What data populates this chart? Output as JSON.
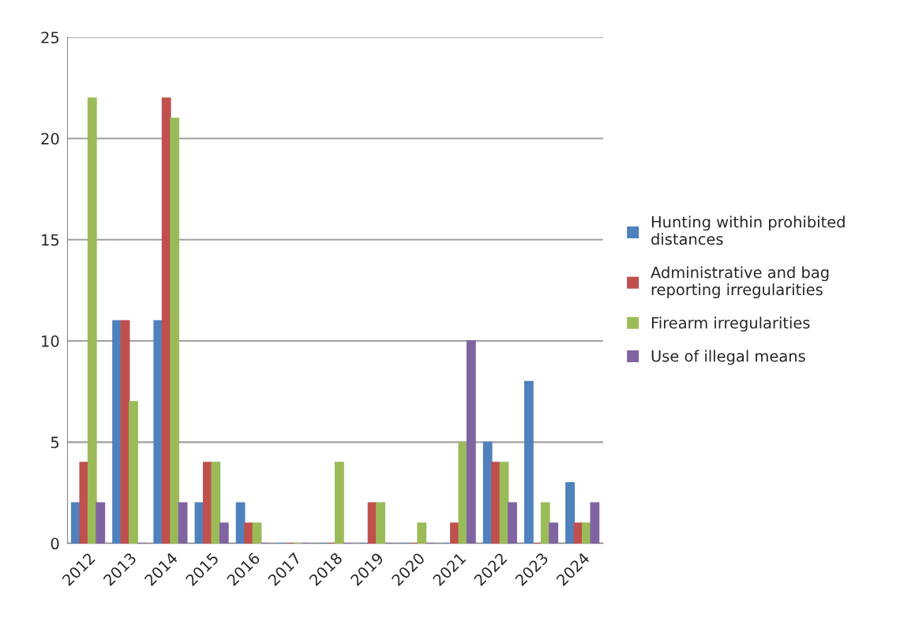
{
  "chart_data": {
    "type": "bar",
    "categories": [
      "2012",
      "2013",
      "2014",
      "2015",
      "2016",
      "2017",
      "2018",
      "2019",
      "2020",
      "2021",
      "2022",
      "2023",
      "2024"
    ],
    "series": [
      {
        "name": "Hunting within prohibited distances",
        "color": "#4f81bd",
        "values": [
          2,
          11,
          11,
          2,
          2,
          0,
          0,
          0,
          0,
          0,
          5,
          8,
          3
        ]
      },
      {
        "name": "Administrative and bag reporting irregularities",
        "color": "#c0504d",
        "values": [
          4,
          11,
          22,
          4,
          1,
          0,
          0,
          2,
          0,
          1,
          4,
          0,
          1
        ]
      },
      {
        "name": "Firearm irregularities",
        "color": "#9bbb59",
        "values": [
          22,
          7,
          21,
          4,
          1,
          0,
          4,
          2,
          1,
          5,
          4,
          2,
          1
        ]
      },
      {
        "name": "Use of illegal means",
        "color": "#8064a2",
        "values": [
          2,
          0,
          2,
          1,
          0,
          0,
          0,
          0,
          0,
          10,
          2,
          1,
          2
        ]
      }
    ],
    "ylim": [
      0,
      25
    ],
    "yticks": [
      0,
      5,
      10,
      15,
      20,
      25
    ],
    "grid": "y",
    "legend": "right"
  }
}
